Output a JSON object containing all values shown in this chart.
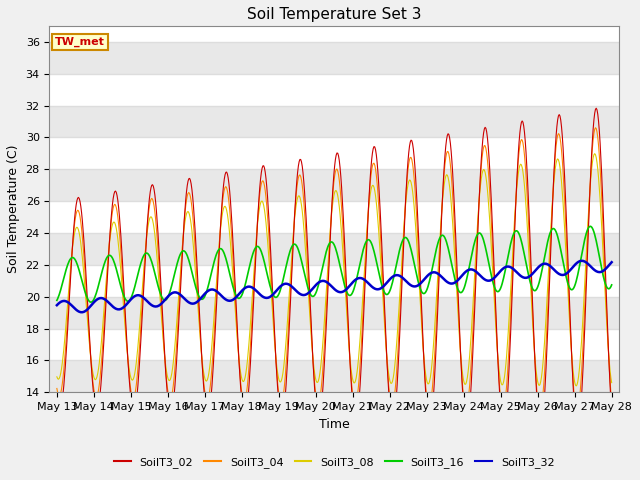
{
  "title": "Soil Temperature Set 3",
  "xlabel": "Time",
  "ylabel": "Soil Temperature (C)",
  "ylim": [
    14,
    37
  ],
  "yticks": [
    14,
    16,
    18,
    20,
    22,
    24,
    26,
    28,
    30,
    32,
    34,
    36
  ],
  "annotation": "TW_met",
  "annotation_color": "#cc0000",
  "annotation_bg": "#ffffcc",
  "annotation_border": "#cc8800",
  "colors": {
    "SoilT3_02": "#cc0000",
    "SoilT3_04": "#ff8800",
    "SoilT3_08": "#ddcc00",
    "SoilT3_16": "#00cc00",
    "SoilT3_32": "#0000cc"
  },
  "bg_color": "#f0f0f0",
  "plot_bg": "#ffffff",
  "grid_color": "#dddddd",
  "start_day": 13,
  "end_day": 28,
  "n_points": 720
}
